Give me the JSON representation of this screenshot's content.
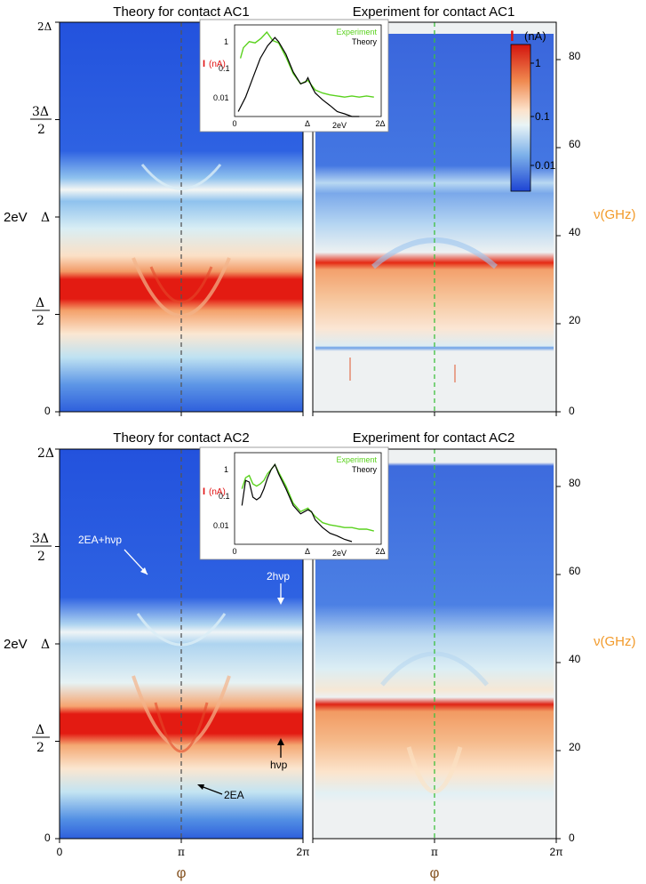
{
  "colors": {
    "blue": "#1f4ed8",
    "light": "#eef3f6",
    "red": "#e01010",
    "orange": "#f39a3a",
    "green": "#5ad21e",
    "axis_accent": "#f29a2a",
    "phi_color": "#8a5a2b"
  },
  "chart_data": [
    {
      "id": "theory-ac1",
      "type": "heatmap",
      "title": "Theory for contact AC1",
      "xlabel": "φ",
      "ylabel": "2eV",
      "x_ticks": [
        "0",
        "π",
        "2π"
      ],
      "y_ticks": [
        "0",
        "Δ/2",
        "Δ",
        "3Δ/2",
        "2Δ"
      ],
      "colorscale": "log current I (nA)",
      "grid": false
    },
    {
      "id": "experiment-ac1",
      "type": "heatmap",
      "title": "Experiment for contact AC1",
      "xlabel": "φ",
      "ylabel_right": "ν(GHz)",
      "x_ticks": [
        "0",
        "π",
        "2π"
      ],
      "y_ticks_right": [
        0,
        20,
        40,
        60,
        80
      ],
      "colorbar": {
        "label": "I (nA)",
        "ticks": [
          "1",
          "0.1",
          "0.01"
        ],
        "placement": "top-right"
      },
      "grid": false
    },
    {
      "id": "theory-ac2",
      "type": "heatmap",
      "title": "Theory for contact AC2",
      "xlabel": "φ",
      "ylabel": "2eV",
      "x_ticks": [
        "0",
        "π",
        "2π"
      ],
      "y_ticks": [
        "0",
        "Δ/2",
        "Δ",
        "3Δ/2",
        "2Δ"
      ],
      "annotations": [
        "2EA+hνp",
        "2hνp",
        "hνp",
        "2EA"
      ],
      "grid": false
    },
    {
      "id": "experiment-ac2",
      "type": "heatmap",
      "title": "Experiment for contact AC2",
      "xlabel": "φ",
      "ylabel_right": "ν(GHz)",
      "x_ticks": [
        "0",
        "π",
        "2π"
      ],
      "y_ticks_right": [
        0,
        20,
        40,
        60,
        80
      ],
      "grid": false
    },
    {
      "id": "inset-ac1",
      "type": "line",
      "ylabel": "I (nA)",
      "xlabel": "2eV",
      "x_ticks": [
        "0",
        "Δ",
        "2Δ"
      ],
      "y_ticks": [
        "1",
        "0.1",
        "0.01"
      ],
      "legend": "top-right",
      "series": [
        {
          "name": "Experiment",
          "color": "#5ad21e",
          "x": [
            0.08,
            0.12,
            0.2,
            0.28,
            0.36,
            0.44,
            0.52,
            0.6,
            0.7,
            0.8,
            0.9,
            1.0,
            1.1,
            1.2,
            1.3,
            1.4,
            1.5,
            1.6,
            1.7,
            1.8,
            1.9
          ],
          "y": [
            0.25,
            0.6,
            1.0,
            0.9,
            1.3,
            2.2,
            1.1,
            0.9,
            0.28,
            0.07,
            0.03,
            0.04,
            0.018,
            0.014,
            0.012,
            0.011,
            0.01,
            0.011,
            0.01,
            0.011,
            0.01
          ]
        },
        {
          "name": "Theory",
          "color": "#000000",
          "x": [
            0.05,
            0.15,
            0.25,
            0.35,
            0.45,
            0.5,
            0.55,
            0.6,
            0.7,
            0.8,
            0.9,
            0.97,
            1.0,
            1.05,
            1.1,
            1.2,
            1.3,
            1.4,
            1.5,
            1.6,
            1.7
          ],
          "y": [
            0.003,
            0.01,
            0.05,
            0.25,
            0.7,
            1.0,
            1.4,
            1.0,
            0.35,
            0.08,
            0.03,
            0.035,
            0.05,
            0.025,
            0.014,
            0.008,
            0.005,
            0.003,
            0.0025,
            0.002,
            0.0018
          ]
        }
      ]
    },
    {
      "id": "inset-ac2",
      "type": "line",
      "ylabel": "I (nA)",
      "xlabel": "2eV",
      "x_ticks": [
        "0",
        "Δ",
        "2Δ"
      ],
      "y_ticks": [
        "1",
        "0.1",
        "0.01"
      ],
      "legend": "top-right",
      "series": [
        {
          "name": "Experiment",
          "color": "#5ad21e",
          "x": [
            0.1,
            0.15,
            0.2,
            0.25,
            0.3,
            0.35,
            0.4,
            0.45,
            0.5,
            0.55,
            0.6,
            0.7,
            0.8,
            0.9,
            1.0,
            1.1,
            1.2,
            1.3,
            1.4,
            1.5,
            1.6,
            1.7,
            1.8,
            1.9
          ],
          "y": [
            0.2,
            0.5,
            0.6,
            0.3,
            0.25,
            0.3,
            0.4,
            0.7,
            1.0,
            1.5,
            0.8,
            0.25,
            0.06,
            0.03,
            0.04,
            0.02,
            0.012,
            0.01,
            0.009,
            0.008,
            0.008,
            0.007,
            0.007,
            0.006
          ]
        },
        {
          "name": "Theory",
          "color": "#000000",
          "x": [
            0.1,
            0.15,
            0.2,
            0.25,
            0.3,
            0.35,
            0.4,
            0.45,
            0.5,
            0.55,
            0.6,
            0.7,
            0.8,
            0.9,
            1.0,
            1.05,
            1.1,
            1.2,
            1.3,
            1.4,
            1.5,
            1.6
          ],
          "y": [
            0.05,
            0.4,
            0.35,
            0.1,
            0.08,
            0.1,
            0.2,
            0.5,
            1.0,
            1.5,
            0.7,
            0.2,
            0.05,
            0.025,
            0.035,
            0.03,
            0.015,
            0.008,
            0.005,
            0.004,
            0.003,
            0.0025
          ]
        }
      ]
    }
  ],
  "labels": {
    "title_tl": "Theory for contact AC1",
    "title_tr": "Experiment for contact AC1",
    "title_bl": "Theory for contact AC2",
    "title_br": "Experiment for contact AC2",
    "yaxis_2ev": "2eV",
    "yaxis_nu": "ν(GHz)",
    "phi": "φ",
    "xt0": "0",
    "xtpi": "π",
    "xt2pi": "2π",
    "yt0": "0",
    "ytd": "Δ",
    "yt2d": "2Δ",
    "ythalf_num": "Δ",
    "ythalf_den": "2",
    "yt3half_num": "3Δ",
    "yt3half_den": "2",
    "nu0": "0",
    "nu20": "20",
    "nu40": "40",
    "nu60": "60",
    "nu80": "80",
    "cb_label_I": "I",
    "cb_label_unit": "(nA)",
    "cb_t1": "1",
    "cb_t01": "0.1",
    "cb_t001": "0.01",
    "inset_I": "I",
    "inset_unit": "(nA)",
    "inset_exp": "Experiment",
    "inset_th": "Theory",
    "inset_x0": "0",
    "inset_xd": "Δ",
    "inset_x2d": "2Δ",
    "inset_x2ev": "2eV",
    "inset_y1": "1",
    "inset_y01": "0.1",
    "inset_y001": "0.01",
    "ann_2ea_hv": "2EA+hνp",
    "ann_2hv": "2hνp",
    "ann_hv": "hνp",
    "ann_2ea": "2EA"
  }
}
